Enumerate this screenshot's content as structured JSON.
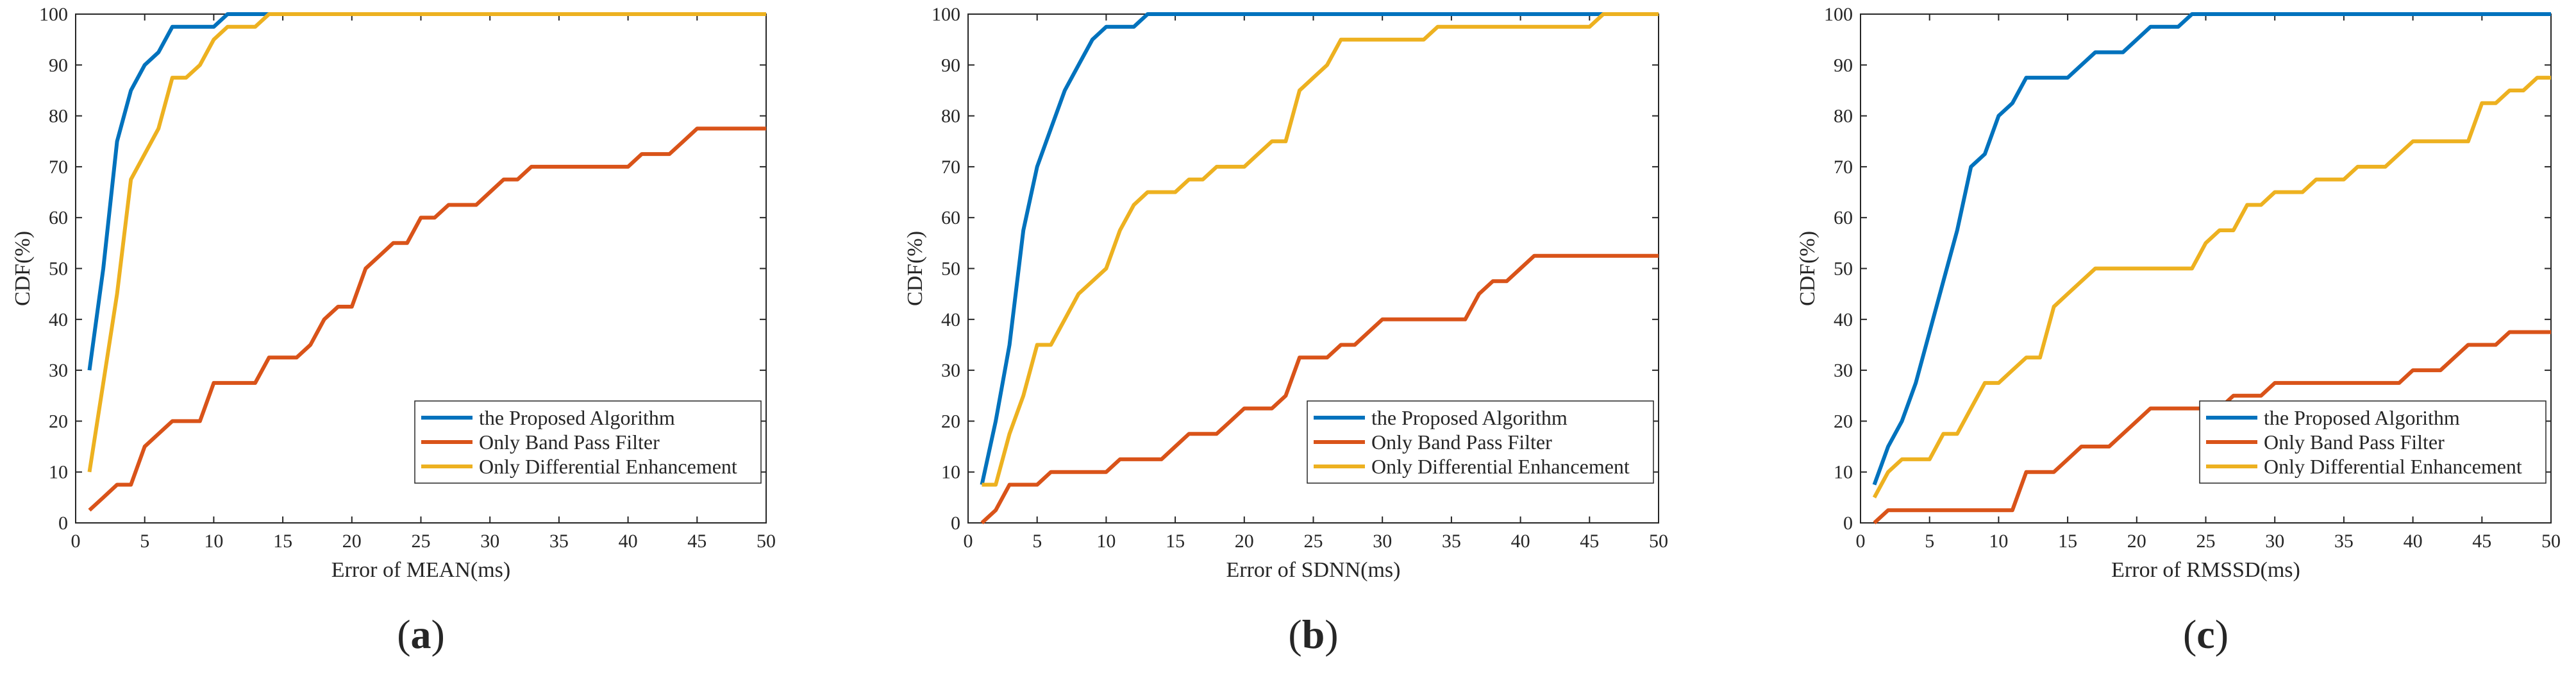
{
  "chart_data": [
    {
      "type": "line",
      "panel_label": {
        "open": "(",
        "letter": "a",
        "close": ")"
      },
      "title": "",
      "xlabel": "Error of MEAN(ms)",
      "ylabel": "CDF(%)",
      "xlim": [
        0,
        50
      ],
      "ylim": [
        0,
        100
      ],
      "xticks": [
        0,
        5,
        10,
        15,
        20,
        25,
        30,
        35,
        40,
        45,
        50
      ],
      "yticks": [
        0,
        10,
        20,
        30,
        40,
        50,
        60,
        70,
        80,
        90,
        100
      ],
      "grid": false,
      "legend_position": "bottom-right",
      "series": [
        {
          "name": "the Proposed Algorithm",
          "color": "#0072BD",
          "x": [
            1,
            2,
            3,
            4,
            5,
            6,
            7,
            8,
            9,
            10,
            11,
            12,
            13,
            14,
            50
          ],
          "y": [
            30,
            50,
            75,
            85,
            90,
            92.5,
            97.5,
            97.5,
            97.5,
            97.5,
            100,
            100,
            100,
            100,
            100
          ]
        },
        {
          "name": "Only Band Pass Filter",
          "color": "#D95319",
          "x": [
            1,
            2,
            3,
            4,
            5,
            6,
            7,
            8,
            9,
            10,
            11,
            12,
            13,
            14,
            15,
            16,
            17,
            18,
            19,
            20,
            21,
            22,
            23,
            24,
            25,
            26,
            27,
            28,
            29,
            30,
            31,
            32,
            33,
            34,
            35,
            36,
            37,
            38,
            39,
            40,
            41,
            42,
            43,
            44,
            45,
            46,
            47,
            48,
            49,
            50
          ],
          "y": [
            2.5,
            5,
            7.5,
            7.5,
            15,
            17.5,
            20,
            20,
            20,
            27.5,
            27.5,
            27.5,
            27.5,
            32.5,
            32.5,
            32.5,
            35,
            40,
            42.5,
            42.5,
            50,
            52.5,
            55,
            55,
            60,
            60,
            62.5,
            62.5,
            62.5,
            65,
            67.5,
            67.5,
            70,
            70,
            70,
            70,
            70,
            70,
            70,
            70,
            72.5,
            72.5,
            72.5,
            75,
            77.5,
            77.5,
            77.5,
            77.5,
            77.5,
            77.5
          ]
        },
        {
          "name": "Only Differential Enhancement",
          "color": "#EDB120",
          "x": [
            1,
            2,
            3,
            4,
            5,
            6,
            7,
            8,
            9,
            10,
            11,
            12,
            13,
            14,
            50
          ],
          "y": [
            10,
            27.5,
            45,
            67.5,
            72.5,
            77.5,
            87.5,
            87.5,
            90,
            95,
            97.5,
            97.5,
            97.5,
            100,
            100
          ]
        }
      ]
    },
    {
      "type": "line",
      "panel_label": {
        "open": "(",
        "letter": "b",
        "close": ")"
      },
      "title": "",
      "xlabel": "Error of SDNN(ms)",
      "ylabel": "CDF(%)",
      "xlim": [
        0,
        50
      ],
      "ylim": [
        0,
        100
      ],
      "xticks": [
        0,
        5,
        10,
        15,
        20,
        25,
        30,
        35,
        40,
        45,
        50
      ],
      "yticks": [
        0,
        10,
        20,
        30,
        40,
        50,
        60,
        70,
        80,
        90,
        100
      ],
      "grid": false,
      "legend_position": "bottom-right",
      "series": [
        {
          "name": "the Proposed Algorithm",
          "color": "#0072BD",
          "x": [
            1,
            2,
            3,
            4,
            5,
            6,
            7,
            8,
            9,
            10,
            11,
            12,
            13,
            50
          ],
          "y": [
            7.5,
            20,
            35,
            57.5,
            70,
            77.5,
            85,
            90,
            95,
            97.5,
            97.5,
            97.5,
            100,
            100
          ]
        },
        {
          "name": "Only Band Pass Filter",
          "color": "#D95319",
          "x": [
            1,
            2,
            3,
            4,
            5,
            6,
            7,
            8,
            9,
            10,
            11,
            12,
            13,
            14,
            15,
            16,
            17,
            18,
            19,
            20,
            21,
            22,
            23,
            24,
            25,
            26,
            27,
            28,
            29,
            30,
            31,
            32,
            33,
            34,
            35,
            36,
            37,
            38,
            39,
            40,
            41,
            42,
            43,
            44,
            45,
            46,
            47,
            48,
            49,
            50
          ],
          "y": [
            0,
            2.5,
            7.5,
            7.5,
            7.5,
            10,
            10,
            10,
            10,
            10,
            12.5,
            12.5,
            12.5,
            12.5,
            15,
            17.5,
            17.5,
            17.5,
            20,
            22.5,
            22.5,
            22.5,
            25,
            32.5,
            32.5,
            32.5,
            35,
            35,
            37.5,
            40,
            40,
            40,
            40,
            40,
            40,
            40,
            45,
            47.5,
            47.5,
            50,
            52.5,
            52.5,
            52.5,
            52.5,
            52.5,
            52.5,
            52.5,
            52.5,
            52.5,
            52.5
          ]
        },
        {
          "name": "Only Differential Enhancement",
          "color": "#EDB120",
          "x": [
            1,
            2,
            3,
            4,
            5,
            6,
            7,
            8,
            9,
            10,
            11,
            12,
            13,
            14,
            15,
            16,
            17,
            18,
            19,
            20,
            21,
            22,
            23,
            24,
            25,
            26,
            27,
            28,
            29,
            30,
            31,
            32,
            33,
            34,
            35,
            36,
            37,
            38,
            39,
            40,
            41,
            42,
            43,
            44,
            45,
            46,
            47,
            48,
            49,
            50
          ],
          "y": [
            7.5,
            7.5,
            17.5,
            25,
            35,
            35,
            40,
            45,
            47.5,
            50,
            57.5,
            62.5,
            65,
            65,
            65,
            67.5,
            67.5,
            70,
            70,
            70,
            72.5,
            75,
            75,
            85,
            87.5,
            90,
            95,
            95,
            95,
            95,
            95,
            95,
            95,
            97.5,
            97.5,
            97.5,
            97.5,
            97.5,
            97.5,
            97.5,
            97.5,
            97.5,
            97.5,
            97.5,
            97.5,
            100,
            100,
            100,
            100,
            100
          ]
        }
      ]
    },
    {
      "type": "line",
      "panel_label": {
        "open": "(",
        "letter": "c",
        "close": ")"
      },
      "title": "",
      "xlabel": "Error of RMSSD(ms)",
      "ylabel": "CDF(%)",
      "xlim": [
        0,
        50
      ],
      "ylim": [
        0,
        100
      ],
      "xticks": [
        0,
        5,
        10,
        15,
        20,
        25,
        30,
        35,
        40,
        45,
        50
      ],
      "yticks": [
        0,
        10,
        20,
        30,
        40,
        50,
        60,
        70,
        80,
        90,
        100
      ],
      "grid": false,
      "legend_position": "bottom-right",
      "series": [
        {
          "name": "the Proposed Algorithm",
          "color": "#0072BD",
          "x": [
            1,
            2,
            3,
            4,
            5,
            6,
            7,
            8,
            9,
            10,
            11,
            12,
            13,
            14,
            15,
            16,
            17,
            18,
            19,
            20,
            21,
            22,
            23,
            24,
            50
          ],
          "y": [
            7.5,
            15,
            20,
            27.5,
            37.5,
            47.5,
            57.5,
            70,
            72.5,
            80,
            82.5,
            87.5,
            87.5,
            87.5,
            87.5,
            90,
            92.5,
            92.5,
            92.5,
            95,
            97.5,
            97.5,
            97.5,
            100,
            100
          ]
        },
        {
          "name": "Only Band Pass Filter",
          "color": "#D95319",
          "x": [
            1,
            2,
            3,
            4,
            5,
            6,
            7,
            8,
            9,
            10,
            11,
            12,
            13,
            14,
            15,
            16,
            17,
            18,
            19,
            20,
            21,
            22,
            23,
            24,
            25,
            26,
            27,
            28,
            29,
            30,
            31,
            32,
            33,
            34,
            35,
            36,
            37,
            38,
            39,
            40,
            41,
            42,
            43,
            44,
            45,
            46,
            47,
            48,
            49,
            50
          ],
          "y": [
            0,
            2.5,
            2.5,
            2.5,
            2.5,
            2.5,
            2.5,
            2.5,
            2.5,
            2.5,
            2.5,
            10,
            10,
            10,
            12.5,
            15,
            15,
            15,
            17.5,
            20,
            22.5,
            22.5,
            22.5,
            22.5,
            22.5,
            22.5,
            25,
            25,
            25,
            27.5,
            27.5,
            27.5,
            27.5,
            27.5,
            27.5,
            27.5,
            27.5,
            27.5,
            27.5,
            30,
            30,
            30,
            32.5,
            35,
            35,
            35,
            37.5,
            37.5,
            37.5,
            37.5
          ]
        },
        {
          "name": "Only Differential Enhancement",
          "color": "#EDB120",
          "x": [
            1,
            2,
            3,
            4,
            5,
            6,
            7,
            8,
            9,
            10,
            11,
            12,
            13,
            14,
            15,
            16,
            17,
            18,
            19,
            20,
            21,
            22,
            23,
            24,
            25,
            26,
            27,
            28,
            29,
            30,
            31,
            32,
            33,
            34,
            35,
            36,
            37,
            38,
            39,
            40,
            41,
            42,
            43,
            44,
            45,
            46,
            47,
            48,
            49,
            50
          ],
          "y": [
            5,
            10,
            12.5,
            12.5,
            12.5,
            17.5,
            17.5,
            22.5,
            27.5,
            27.5,
            30,
            32.5,
            32.5,
            42.5,
            45,
            47.5,
            50,
            50,
            50,
            50,
            50,
            50,
            50,
            50,
            55,
            57.5,
            57.5,
            62.5,
            62.5,
            65,
            65,
            65,
            67.5,
            67.5,
            67.5,
            70,
            70,
            70,
            72.5,
            75,
            75,
            75,
            75,
            75,
            82.5,
            82.5,
            85,
            85,
            87.5,
            87.5
          ]
        }
      ]
    }
  ]
}
